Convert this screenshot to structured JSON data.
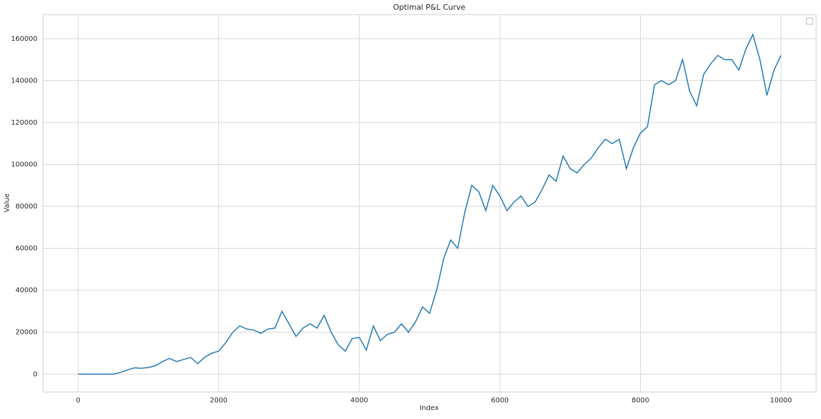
{
  "chart_data": {
    "type": "line",
    "title": "Optimal P&L Curve",
    "x_label": "Index",
    "y_label": "Value",
    "x": [
      0,
      100,
      200,
      300,
      400,
      500,
      600,
      700,
      800,
      900,
      1000,
      1100,
      1200,
      1300,
      1400,
      1500,
      1600,
      1700,
      1800,
      1900,
      2000,
      2100,
      2200,
      2300,
      2400,
      2500,
      2600,
      2700,
      2800,
      2900,
      3000,
      3100,
      3200,
      3300,
      3400,
      3500,
      3600,
      3700,
      3800,
      3900,
      4000,
      4100,
      4200,
      4300,
      4400,
      4500,
      4600,
      4700,
      4800,
      4900,
      5000,
      5100,
      5200,
      5300,
      5400,
      5500,
      5600,
      5700,
      5800,
      5900,
      6000,
      6100,
      6200,
      6300,
      6400,
      6500,
      6600,
      6700,
      6800,
      6900,
      7000,
      7100,
      7200,
      7300,
      7400,
      7500,
      7600,
      7700,
      7800,
      7900,
      8000,
      8100,
      8200,
      8300,
      8400,
      8500,
      8600,
      8700,
      8800,
      8900,
      9000,
      9100,
      9200,
      9300,
      9400,
      9500,
      9600,
      9700,
      9800,
      9900,
      10000
    ],
    "series": [
      {
        "color": "#1f77b4",
        "values": [
          0,
          0,
          0,
          0,
          0,
          0,
          800,
          2000,
          3000,
          2800,
          3200,
          4000,
          6000,
          7500,
          6000,
          7000,
          8000,
          5000,
          8000,
          10000,
          11000,
          15000,
          20000,
          23000,
          21500,
          21000,
          19500,
          21500,
          22000,
          30000,
          24000,
          18000,
          22000,
          24000,
          22000,
          28000,
          20000,
          14000,
          11000,
          17000,
          17500,
          11500,
          23000,
          16000,
          19000,
          20000,
          24000,
          20000,
          25000,
          32000,
          29000,
          40000,
          55000,
          64000,
          60000,
          77000,
          90000,
          87000,
          78000,
          90000,
          85000,
          78000,
          82000,
          85000,
          80000,
          82000,
          88000,
          95000,
          92000,
          104000,
          98000,
          96000,
          100000,
          103000,
          108000,
          112000,
          110000,
          112000,
          98000,
          108000,
          115000,
          118000,
          138000,
          140000,
          138000,
          140000,
          150000,
          135000,
          128000,
          143000,
          148000,
          152000,
          150000,
          150000,
          145000,
          155000,
          162000,
          150000,
          133000,
          145000,
          152000
        ]
      }
    ],
    "xlim": [
      -500,
      10500
    ],
    "xticks": [
      0,
      2000,
      4000,
      6000,
      8000,
      10000
    ],
    "ylim": [
      -8500,
      171500
    ],
    "yticks": [
      0,
      20000,
      40000,
      60000,
      80000,
      100000,
      120000,
      140000,
      160000
    ],
    "grid": true
  }
}
